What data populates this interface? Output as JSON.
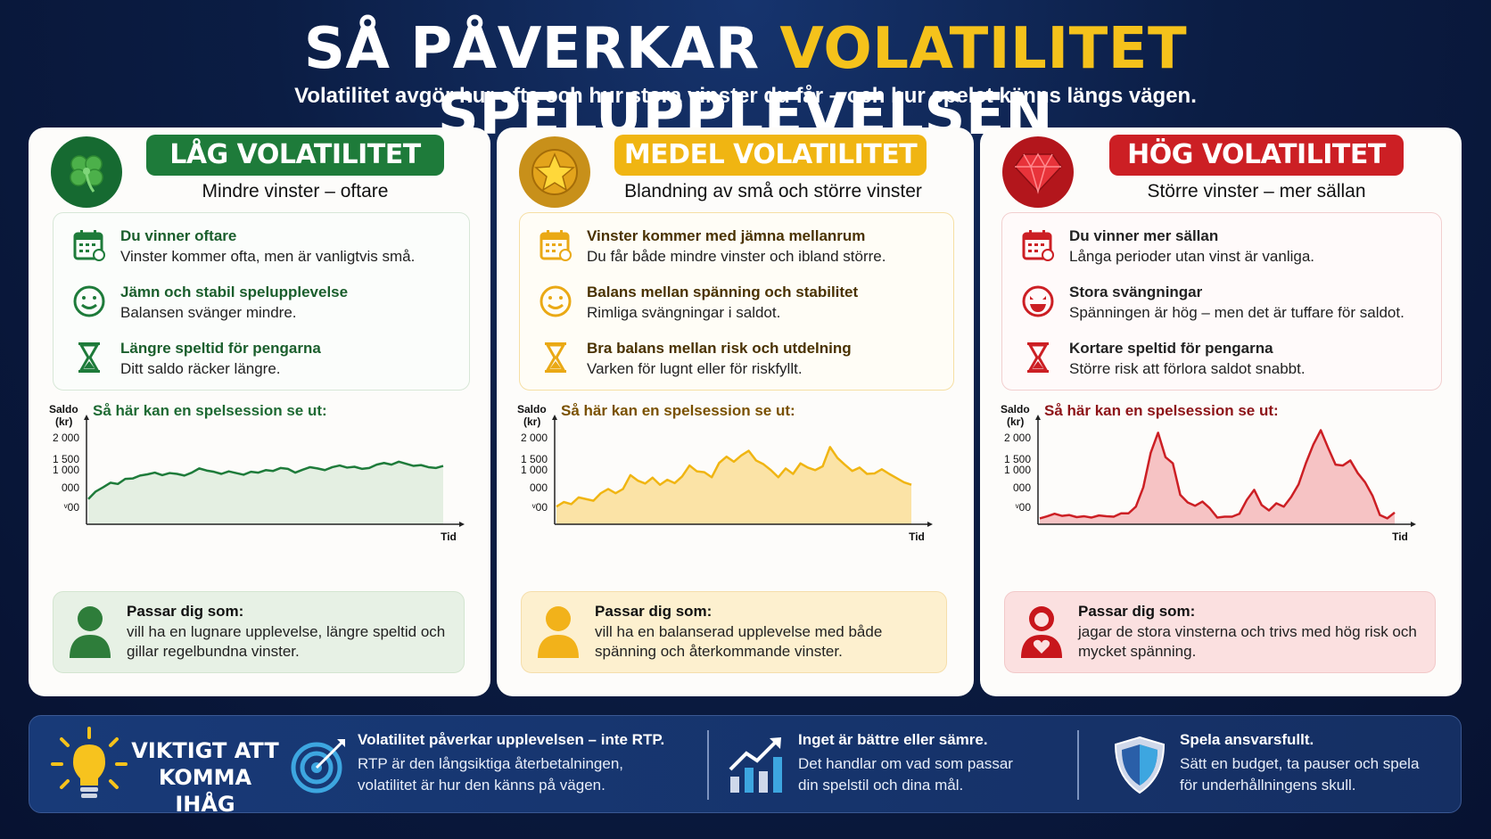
{
  "header": {
    "title_pre": "SÅ PÅVERKAR",
    "title_highlight": "VOLATILITET",
    "title_post": "SPELUPPLEVELSEN",
    "subtitle": "Volatilitet avgör hur ofta och hur stora vinster du får – och hur spelet känns längs vägen."
  },
  "colors": {
    "low": "#1e7b3a",
    "medium": "#f0b512",
    "high": "#cc1f24",
    "highlight": "#f5c21b"
  },
  "panels": [
    {
      "level": "LÅG VOLATILITET",
      "icon": "clover-icon",
      "tagline": "Mindre vinster – oftare",
      "features": [
        {
          "icon": "calendar-icon",
          "title": "Du vinner oftare",
          "text": "Vinster kommer ofta, men är vanligtvis små."
        },
        {
          "icon": "smiley-icon",
          "title": "Jämn och stabil spelupplevelse",
          "text": "Balansen svänger mindre."
        },
        {
          "icon": "hourglass-icon",
          "title": "Längre speltid för pengarna",
          "text": "Ditt saldo räcker längre."
        }
      ],
      "session_label": "Så här kan en spelsession se ut:",
      "fit_title": "Passar dig som:",
      "fit_text": "vill ha en lugnare upplevelse, längre speltid och gillar regelbundna vinster."
    },
    {
      "level": "MEDEL VOLATILITET",
      "icon": "star-icon",
      "tagline": "Blandning av små och större vinster",
      "features": [
        {
          "icon": "calendar-icon",
          "title": "Vinster kommer med jämna mellanrum",
          "text": "Du får både mindre vinster och ibland större."
        },
        {
          "icon": "smiley-icon",
          "title": "Balans mellan spänning och stabilitet",
          "text": "Rimliga svängningar i saldot."
        },
        {
          "icon": "hourglass-icon",
          "title": "Bra balans mellan risk och utdelning",
          "text": "Varken för lugnt eller för riskfyllt."
        }
      ],
      "session_label": "Så här kan en spelsession se ut:",
      "fit_title": "Passar dig som:",
      "fit_text": "vill ha en balanserad upplevelse med både spänning och återkommande vinster."
    },
    {
      "level": "HÖG VOLATILITET",
      "icon": "gem-icon",
      "tagline": "Större vinster – mer sällan",
      "features": [
        {
          "icon": "calendar-icon",
          "title": "Du vinner mer sällan",
          "text": "Långa perioder utan vinst är vanliga."
        },
        {
          "icon": "excited-face-icon",
          "title": "Stora svängningar",
          "text": "Spänningen är hög – men det är tuffare för saldot."
        },
        {
          "icon": "hourglass-icon",
          "title": "Kortare speltid för pengarna",
          "text": "Större risk att förlora saldot snabbt."
        }
      ],
      "session_label": "Så här kan en spelsession se ut:",
      "fit_title": "Passar dig som:",
      "fit_text": "jagar de stora vinsterna och trivs med hög risk och mycket spänning."
    }
  ],
  "chart_data": [
    {
      "type": "area",
      "ylabel": "Saldo (kr)",
      "xlabel": "Tid",
      "y_tick_labels": [
        "2 000",
        "1 500",
        "1 000",
        "000",
        "ᵛ00"
      ],
      "color": "#1e7b3a",
      "x": [
        0,
        1,
        2,
        3,
        4,
        5,
        6,
        7,
        8,
        9,
        10,
        11,
        12,
        13,
        14,
        15,
        16,
        17,
        18,
        19,
        20,
        21,
        22,
        23,
        24,
        25,
        26,
        27,
        28,
        29,
        30,
        31,
        32,
        33,
        34,
        35,
        36,
        37,
        38,
        39,
        40,
        41,
        42,
        43,
        44,
        45,
        46,
        47,
        48
      ],
      "values": [
        600,
        780,
        880,
        990,
        960,
        1080,
        1090,
        1160,
        1190,
        1230,
        1170,
        1220,
        1200,
        1160,
        1230,
        1330,
        1280,
        1250,
        1200,
        1260,
        1220,
        1180,
        1250,
        1230,
        1290,
        1270,
        1340,
        1320,
        1230,
        1300,
        1360,
        1330,
        1290,
        1360,
        1400,
        1350,
        1370,
        1320,
        1340,
        1420,
        1460,
        1420,
        1490,
        1440,
        1390,
        1410,
        1360,
        1340,
        1390
      ]
    },
    {
      "type": "area",
      "ylabel": "Saldo (kr)",
      "xlabel": "Tid",
      "y_tick_labels": [
        "2 000",
        "1 500",
        "1 000",
        "000",
        "ᵛ00"
      ],
      "color": "#f0b512",
      "x": [
        0,
        1,
        2,
        3,
        4,
        5,
        6,
        7,
        8,
        9,
        10,
        11,
        12,
        13,
        14,
        15,
        16,
        17,
        18,
        19,
        20,
        21,
        22,
        23,
        24,
        25,
        26,
        27,
        28,
        29,
        30,
        31,
        32,
        33,
        34,
        35,
        36,
        37,
        38,
        39,
        40,
        41,
        42,
        43,
        44,
        45,
        46,
        47,
        48
      ],
      "values": [
        420,
        530,
        480,
        640,
        600,
        560,
        740,
        840,
        740,
        840,
        1170,
        1040,
        970,
        1110,
        940,
        1060,
        980,
        1140,
        1400,
        1260,
        1240,
        1120,
        1460,
        1610,
        1490,
        1640,
        1750,
        1520,
        1430,
        1290,
        1120,
        1330,
        1200,
        1450,
        1350,
        1290,
        1380,
        1840,
        1580,
        1420,
        1270,
        1350,
        1200,
        1210,
        1310,
        1200,
        1100,
        1000,
        940
      ]
    },
    {
      "type": "area",
      "ylabel": "Saldo (kr)",
      "xlabel": "Tid",
      "y_tick_labels": [
        "2 000",
        "1 500",
        "1 000",
        "000",
        "ᵛ00"
      ],
      "color": "#cc1f24",
      "x": [
        0,
        1,
        2,
        3,
        4,
        5,
        6,
        7,
        8,
        9,
        10,
        11,
        12,
        13,
        14,
        15,
        16,
        17,
        18,
        19,
        20,
        21,
        22,
        23,
        24,
        25,
        26,
        27,
        28,
        29,
        30,
        31,
        32,
        33,
        34,
        35,
        36,
        37,
        38,
        39,
        40,
        41,
        42,
        43,
        44,
        45,
        46,
        47,
        48
      ],
      "values": [
        140,
        190,
        250,
        200,
        220,
        170,
        190,
        160,
        210,
        190,
        180,
        260,
        260,
        420,
        880,
        1700,
        2180,
        1600,
        1450,
        700,
        520,
        440,
        540,
        380,
        160,
        180,
        180,
        250,
        580,
        820,
        460,
        330,
        500,
        420,
        650,
        950,
        1460,
        1900,
        2240,
        1820,
        1420,
        1400,
        1520,
        1220,
        1000,
        680,
        220,
        140,
        280
      ]
    }
  ],
  "footer": {
    "heading": "VIKTIGT ATT KOMMA IHÅG",
    "items": [
      {
        "icon": "target-icon",
        "title": "Volatilitet påverkar upplevelsen – inte RTP.",
        "line1": "RTP är den långsiktiga återbetalningen,",
        "line2": "volatilitet är hur den känns på vägen."
      },
      {
        "icon": "growth-chart-icon",
        "title": "Inget är bättre eller sämre.",
        "line1": "Det handlar om vad som passar",
        "line2": "din spelstil och dina mål."
      },
      {
        "icon": "shield-icon",
        "title": "Spela ansvarsfullt.",
        "line1": "Sätt en budget, ta pauser och spela",
        "line2": "för underhållningens skull."
      }
    ]
  }
}
